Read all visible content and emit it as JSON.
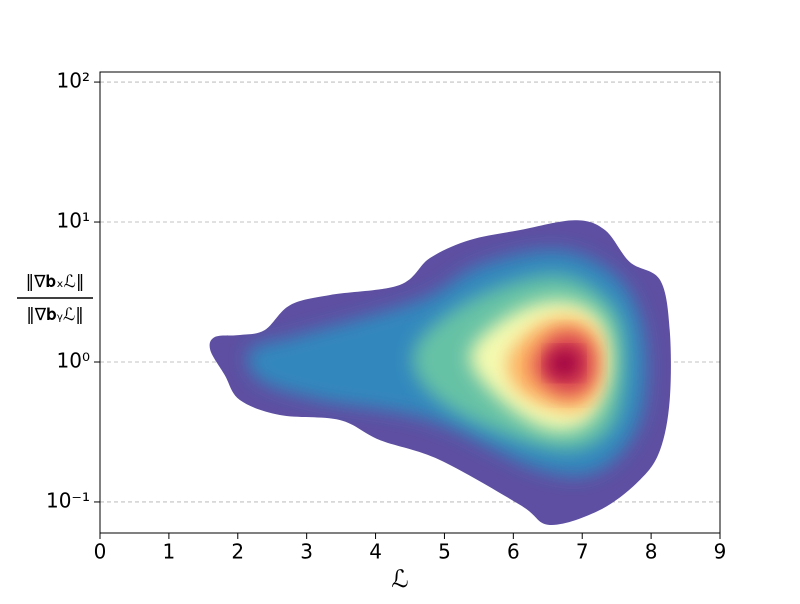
{
  "chart_data": {
    "type": "density_contour",
    "x_label": "ℒ",
    "y_label": {
      "numerator": "‖∇𝐛ₓℒ‖",
      "denominator": "‖∇𝐛ᵧℒ‖"
    },
    "xlim": [
      0,
      9
    ],
    "xticks": [
      0,
      1,
      2,
      3,
      4,
      5,
      6,
      7,
      8,
      9
    ],
    "ylim": [
      0.06,
      118
    ],
    "y_scale": "log",
    "yticks": [
      {
        "value": 0.1,
        "label": "10⁻¹"
      },
      {
        "value": 1,
        "label": "10⁰"
      },
      {
        "value": 10,
        "label": "10¹"
      },
      {
        "value": 100,
        "label": "10²"
      }
    ],
    "grid": "y",
    "contours": [
      {
        "color": "#5e4fa2",
        "x": [
          1.67,
          2.03,
          2.39,
          2.76,
          3.34,
          4.35,
          4.79,
          5.37,
          6.1,
          6.89,
          7.33,
          7.69,
          8.13,
          8.27,
          8.27,
          8.13,
          7.84,
          7.26,
          6.53,
          6.1,
          4.93,
          4.06,
          3.48,
          2.61,
          2.03,
          1.81,
          1.6
        ],
        "y": [
          1.51,
          1.56,
          1.69,
          2.55,
          3.01,
          3.55,
          5.53,
          7.44,
          8.77,
          10.3,
          8.77,
          5.18,
          3.85,
          1.69,
          0.535,
          0.235,
          0.144,
          0.0877,
          0.0685,
          0.0952,
          0.2,
          0.277,
          0.385,
          0.418,
          0.535,
          0.808,
          1.22
        ]
      },
      {
        "color": "#3288bd",
        "x": [
          2.18,
          2.9,
          4.64,
          5.52,
          6.68,
          7.55,
          7.91,
          7.84,
          7.26,
          6.39,
          4.79,
          3.19,
          2.32
        ],
        "y": [
          1.22,
          1.56,
          2.77,
          4.93,
          6.31,
          3.85,
          1.44,
          0.385,
          0.169,
          0.169,
          0.385,
          0.535,
          0.743
        ]
      },
      {
        "color": "#66c2a5",
        "x": [
          4.64,
          5.52,
          6.68,
          7.47,
          7.62,
          7.4,
          6.68,
          5.37,
          4.64
        ],
        "y": [
          1.44,
          3.01,
          4.18,
          2.35,
          0.877,
          0.327,
          0.235,
          0.385,
          0.743
        ]
      },
      {
        "color": "#f4fab0",
        "x": [
          5.37,
          5.95,
          6.68,
          7.26,
          7.4,
          7.11,
          6.53,
          5.81
        ],
        "y": [
          1.12,
          2.17,
          2.77,
          2.0,
          0.877,
          0.385,
          0.327,
          0.535
        ]
      },
      {
        "color": "#fdae61",
        "x": [
          5.95,
          6.39,
          6.89,
          7.26,
          7.26,
          6.97,
          6.46,
          6.02
        ],
        "y": [
          1.12,
          1.84,
          2.06,
          1.44,
          0.685,
          0.454,
          0.493,
          0.685
        ]
      },
      {
        "color": "#d53e4f",
        "x": [
          6.31,
          6.6,
          6.97,
          7.18,
          7.11,
          6.75,
          6.39
        ],
        "y": [
          1.03,
          1.56,
          1.56,
          1.12,
          0.685,
          0.581,
          0.743
        ]
      },
      {
        "color": "#9e0142",
        "x": [
          6.5,
          6.68,
          6.89,
          6.97,
          6.82,
          6.6
        ],
        "y": [
          1.0,
          1.22,
          1.18,
          0.952,
          0.782,
          0.808
        ]
      }
    ]
  }
}
